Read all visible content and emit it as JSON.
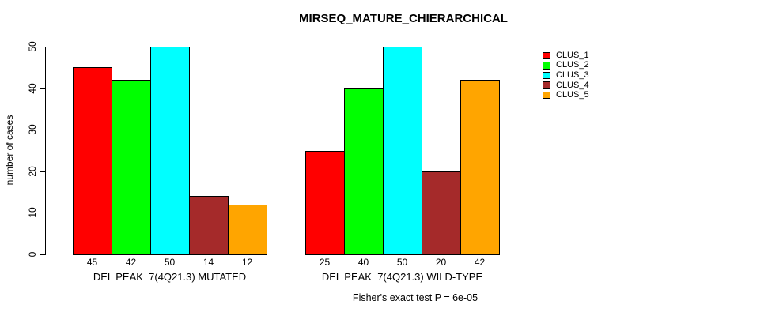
{
  "chart_data": {
    "type": "bar",
    "title": "MIRSEQ_MATURE_CHIERARCHICAL",
    "ylabel": "number of cases",
    "ylim": [
      0,
      50
    ],
    "yticks": [
      0,
      10,
      20,
      30,
      40,
      50
    ],
    "grid": false,
    "legend_position": "right",
    "bar_border_color": "#000000",
    "series": [
      {
        "name": "CLUS_1",
        "color": "#FF0000"
      },
      {
        "name": "CLUS_2",
        "color": "#00FF00"
      },
      {
        "name": "CLUS_3",
        "color": "#00FFFF"
      },
      {
        "name": "CLUS_4",
        "color": "#A52A2A"
      },
      {
        "name": "CLUS_5",
        "color": "#FFA500"
      }
    ],
    "groups": [
      {
        "label": "DEL PEAK  7(4Q21.3) MUTATED",
        "values": [
          45,
          42,
          50,
          14,
          12
        ]
      },
      {
        "label": "DEL PEAK  7(4Q21.3) WILD-TYPE",
        "values": [
          25,
          40,
          50,
          20,
          42
        ]
      }
    ],
    "footer": "Fisher's exact test P = 6e-05"
  }
}
